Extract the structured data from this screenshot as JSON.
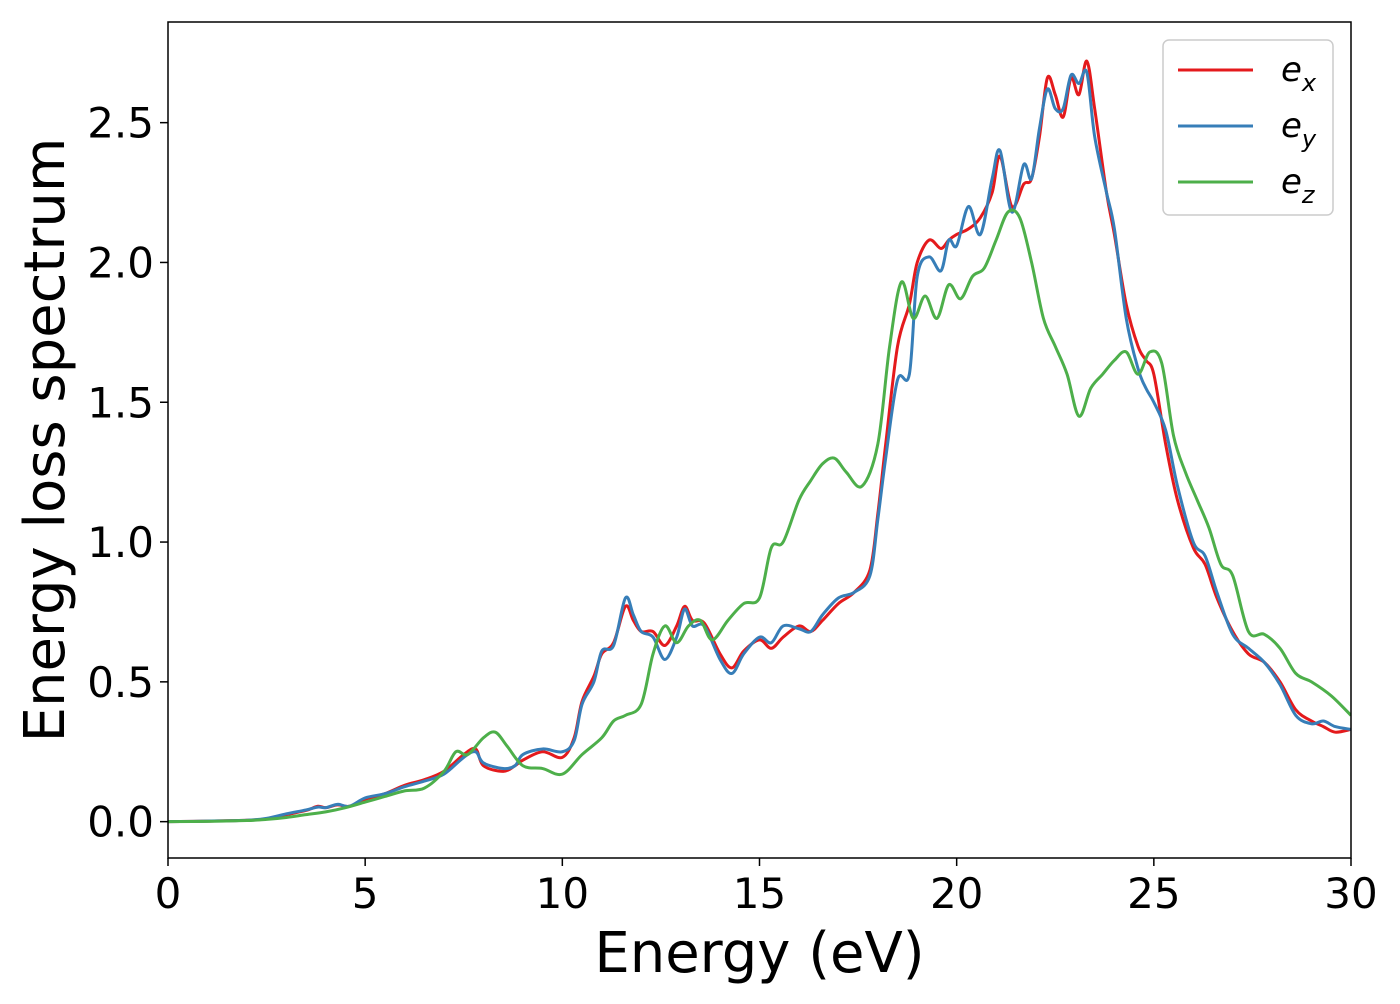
{
  "chart_data": {
    "type": "line",
    "title": "",
    "xlabel": "Energy (eV)",
    "ylabel": "Energy loss spectrum",
    "xlim": [
      0,
      30
    ],
    "ylim": [
      -0.13,
      2.86
    ],
    "xticks": [
      0,
      5,
      10,
      15,
      20,
      25,
      30
    ],
    "xtick_labels": [
      "0",
      "5",
      "10",
      "15",
      "20",
      "25",
      "30"
    ],
    "yticks": [
      0.0,
      0.5,
      1.0,
      1.5,
      2.0,
      2.5
    ],
    "ytick_labels": [
      "0.0",
      "0.5",
      "1.0",
      "1.5",
      "2.0",
      "2.5"
    ],
    "grid": false,
    "legend_position": "top-right",
    "series": [
      {
        "name": "e_x",
        "label_base": "e",
        "label_sub": "x",
        "color": "#e41a1c",
        "x": [
          0,
          1,
          2,
          2.5,
          3,
          3.5,
          3.8,
          4,
          4.3,
          4.6,
          5,
          5.5,
          6,
          6.5,
          7,
          7.5,
          7.8,
          8,
          8.5,
          8.8,
          9,
          9.5,
          10,
          10.3,
          10.5,
          10.8,
          11,
          11.3,
          11.6,
          11.8,
          12,
          12.3,
          12.6,
          12.9,
          13.1,
          13.3,
          13.6,
          14,
          14.3,
          14.6,
          15,
          15.3,
          15.6,
          16,
          16.3,
          16.6,
          17,
          17.4,
          17.8,
          18,
          18.2,
          18.5,
          18.8,
          19,
          19.3,
          19.6,
          19.8,
          20,
          20.3,
          20.6,
          20.9,
          21.1,
          21.4,
          21.7,
          21.9,
          22.1,
          22.3,
          22.5,
          22.7,
          22.9,
          23.1,
          23.3,
          23.5,
          23.8,
          24,
          24.3,
          24.6,
          24.8,
          25,
          25.3,
          25.6,
          26,
          26.3,
          26.6,
          27,
          27.4,
          27.8,
          28.2,
          28.6,
          29,
          29.3,
          29.6,
          30
        ],
        "y": [
          0,
          0.002,
          0.005,
          0.01,
          0.025,
          0.04,
          0.055,
          0.05,
          0.06,
          0.055,
          0.08,
          0.1,
          0.13,
          0.15,
          0.18,
          0.24,
          0.26,
          0.2,
          0.18,
          0.2,
          0.22,
          0.25,
          0.23,
          0.3,
          0.43,
          0.52,
          0.6,
          0.64,
          0.77,
          0.72,
          0.68,
          0.68,
          0.63,
          0.7,
          0.77,
          0.72,
          0.71,
          0.6,
          0.55,
          0.61,
          0.65,
          0.62,
          0.66,
          0.7,
          0.68,
          0.72,
          0.78,
          0.82,
          0.9,
          1.1,
          1.35,
          1.7,
          1.85,
          2.0,
          2.08,
          2.05,
          2.08,
          2.1,
          2.12,
          2.16,
          2.25,
          2.38,
          2.2,
          2.28,
          2.3,
          2.45,
          2.66,
          2.6,
          2.52,
          2.66,
          2.6,
          2.72,
          2.55,
          2.25,
          2.1,
          1.85,
          1.7,
          1.65,
          1.6,
          1.35,
          1.15,
          0.98,
          0.92,
          0.8,
          0.68,
          0.6,
          0.57,
          0.5,
          0.4,
          0.36,
          0.34,
          0.32,
          0.33
        ]
      },
      {
        "name": "e_y",
        "label_base": "e",
        "label_sub": "y",
        "color": "#377eb8",
        "x": [
          0,
          1,
          2,
          2.5,
          3,
          3.5,
          3.8,
          4,
          4.3,
          4.6,
          5,
          5.5,
          6,
          6.5,
          7,
          7.5,
          7.8,
          8,
          8.5,
          8.8,
          9,
          9.5,
          10,
          10.3,
          10.5,
          10.8,
          11,
          11.3,
          11.6,
          11.8,
          12,
          12.3,
          12.6,
          12.9,
          13.1,
          13.3,
          13.6,
          14,
          14.3,
          14.6,
          15,
          15.3,
          15.6,
          16,
          16.3,
          16.6,
          17,
          17.4,
          17.8,
          18,
          18.2,
          18.5,
          18.8,
          19,
          19.3,
          19.6,
          19.8,
          20,
          20.3,
          20.6,
          20.9,
          21.1,
          21.4,
          21.7,
          21.9,
          22.1,
          22.3,
          22.5,
          22.7,
          22.9,
          23.1,
          23.3,
          23.5,
          23.8,
          24,
          24.3,
          24.6,
          24.8,
          25,
          25.3,
          25.6,
          26,
          26.3,
          26.6,
          27,
          27.4,
          27.8,
          28.2,
          28.6,
          29,
          29.3,
          29.6,
          30
        ],
        "y": [
          0,
          0.002,
          0.005,
          0.012,
          0.028,
          0.042,
          0.052,
          0.05,
          0.062,
          0.055,
          0.085,
          0.1,
          0.125,
          0.145,
          0.17,
          0.23,
          0.25,
          0.21,
          0.19,
          0.2,
          0.24,
          0.26,
          0.25,
          0.29,
          0.42,
          0.5,
          0.61,
          0.63,
          0.8,
          0.74,
          0.68,
          0.66,
          0.58,
          0.66,
          0.76,
          0.7,
          0.7,
          0.58,
          0.53,
          0.6,
          0.66,
          0.64,
          0.7,
          0.69,
          0.68,
          0.74,
          0.8,
          0.82,
          0.88,
          1.08,
          1.3,
          1.58,
          1.6,
          1.95,
          2.02,
          1.97,
          2.08,
          2.06,
          2.2,
          2.1,
          2.3,
          2.4,
          2.18,
          2.35,
          2.3,
          2.48,
          2.62,
          2.55,
          2.55,
          2.67,
          2.64,
          2.68,
          2.45,
          2.25,
          2.12,
          1.8,
          1.62,
          1.55,
          1.5,
          1.4,
          1.2,
          1.0,
          0.95,
          0.82,
          0.67,
          0.62,
          0.57,
          0.49,
          0.38,
          0.35,
          0.36,
          0.34,
          0.33
        ]
      },
      {
        "name": "e_z",
        "label_base": "e",
        "label_sub": "z",
        "color": "#4daf4a",
        "x": [
          0,
          1,
          2,
          2.5,
          3,
          3.5,
          4,
          4.5,
          5,
          5.5,
          6,
          6.5,
          7,
          7.3,
          7.6,
          8,
          8.3,
          8.6,
          9,
          9.5,
          10,
          10.5,
          11,
          11.3,
          11.6,
          12,
          12.3,
          12.6,
          12.9,
          13.2,
          13.5,
          13.8,
          14.2,
          14.6,
          15,
          15.3,
          15.6,
          16,
          16.3,
          16.6,
          16.9,
          17.2,
          17.6,
          18,
          18.3,
          18.6,
          18.9,
          19.2,
          19.5,
          19.8,
          20.1,
          20.4,
          20.7,
          21,
          21.3,
          21.6,
          21.9,
          22.2,
          22.5,
          22.8,
          23.1,
          23.4,
          23.7,
          24,
          24.3,
          24.6,
          24.9,
          25.2,
          25.5,
          25.8,
          26.1,
          26.4,
          26.7,
          27,
          27.4,
          27.8,
          28.2,
          28.6,
          29,
          29.5,
          30
        ],
        "y": [
          0,
          0.001,
          0.004,
          0.008,
          0.015,
          0.025,
          0.035,
          0.05,
          0.07,
          0.09,
          0.11,
          0.12,
          0.18,
          0.25,
          0.24,
          0.3,
          0.32,
          0.27,
          0.2,
          0.19,
          0.17,
          0.24,
          0.3,
          0.36,
          0.38,
          0.42,
          0.6,
          0.7,
          0.64,
          0.7,
          0.72,
          0.65,
          0.72,
          0.78,
          0.8,
          0.98,
          1.0,
          1.15,
          1.22,
          1.28,
          1.3,
          1.25,
          1.2,
          1.35,
          1.7,
          1.93,
          1.8,
          1.88,
          1.8,
          1.92,
          1.87,
          1.95,
          1.98,
          2.08,
          2.18,
          2.16,
          2.0,
          1.8,
          1.7,
          1.6,
          1.45,
          1.55,
          1.6,
          1.65,
          1.68,
          1.6,
          1.68,
          1.64,
          1.38,
          1.25,
          1.15,
          1.05,
          0.92,
          0.88,
          0.68,
          0.67,
          0.62,
          0.53,
          0.5,
          0.45,
          0.38
        ]
      }
    ]
  }
}
